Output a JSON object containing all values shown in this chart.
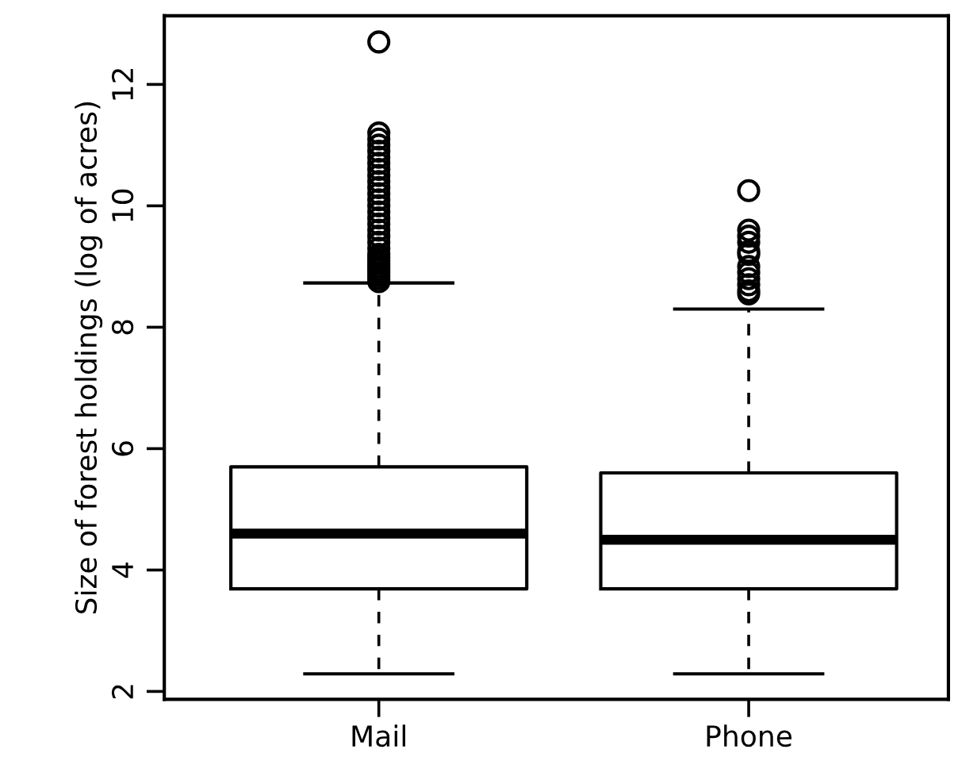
{
  "chart_data": {
    "type": "box",
    "ylabel": "Size of forest holdings (log of acres)",
    "categories": [
      "Mail",
      "Phone"
    ],
    "boxes": [
      {
        "low": 2.29,
        "q1": 3.69,
        "median": 4.6,
        "q3": 5.7,
        "high": 8.73,
        "outliers": [
          8.75,
          8.8,
          8.85,
          8.9,
          8.95,
          9.0,
          9.05,
          9.1,
          9.15,
          9.2,
          9.3,
          9.4,
          9.5,
          9.6,
          9.7,
          9.8,
          9.9,
          10.0,
          10.1,
          10.2,
          10.3,
          10.4,
          10.5,
          10.6,
          10.7,
          10.8,
          10.9,
          11.0,
          11.1,
          11.2,
          12.7
        ]
      },
      {
        "low": 2.29,
        "q1": 3.69,
        "median": 4.5,
        "q3": 5.6,
        "high": 8.3,
        "outliers": [
          8.55,
          8.6,
          8.7,
          8.8,
          8.9,
          9.0,
          9.2,
          9.25,
          9.4,
          9.5,
          9.6,
          10.25
        ]
      }
    ],
    "ylim": [
      1.87,
      13.13
    ],
    "yticks": [
      2,
      4,
      6,
      8,
      10,
      12
    ],
    "grid": false
  }
}
